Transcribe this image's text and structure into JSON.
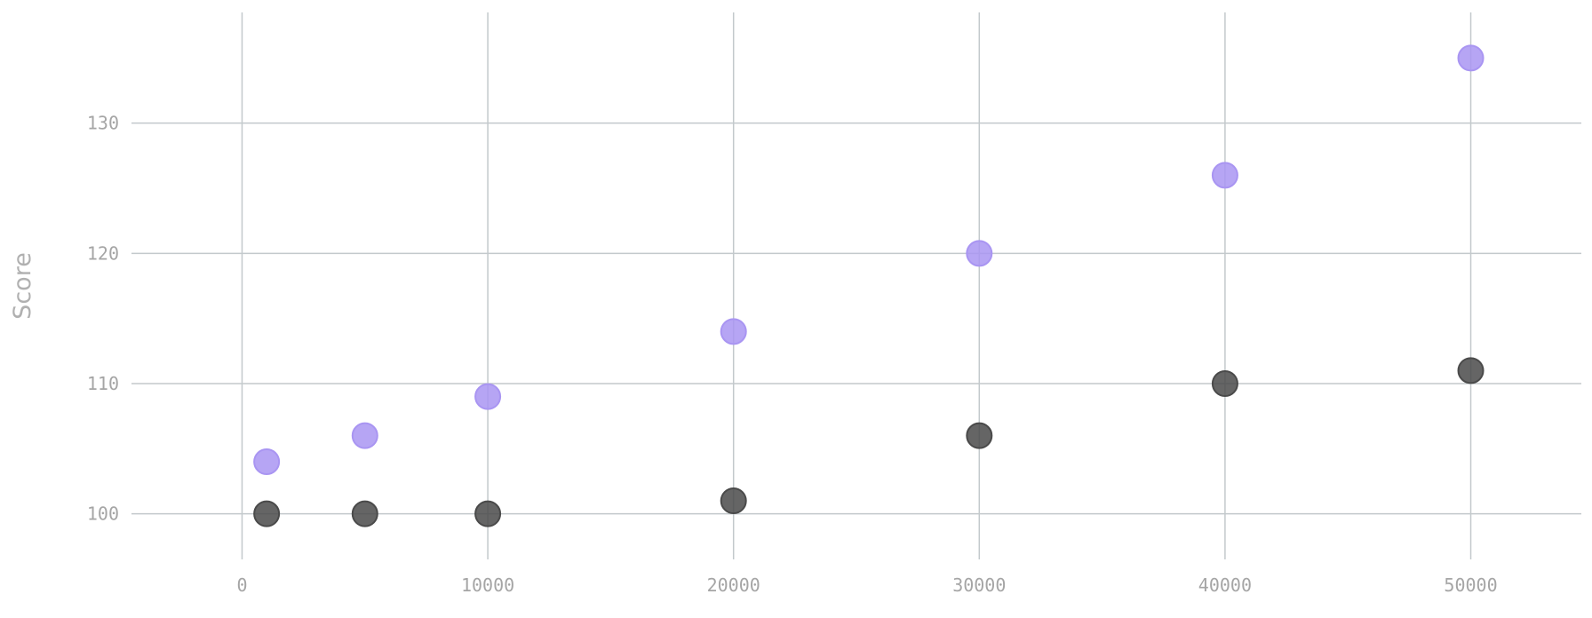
{
  "chart_data": {
    "type": "scatter",
    "title": "",
    "xlabel": "",
    "ylabel": "Score",
    "xlim": [
      -4500,
      54500
    ],
    "ylim": [
      96.5,
      138.5
    ],
    "x_ticks": [
      0,
      10000,
      20000,
      30000,
      40000,
      50000
    ],
    "y_ticks": [
      100,
      110,
      120,
      130
    ],
    "grid": true,
    "legend": "none",
    "x": [
      1000,
      5000,
      10000,
      20000,
      30000,
      40000,
      50000
    ],
    "series": [
      {
        "color": "#a995f2",
        "values": [
          104,
          106,
          109,
          114,
          120,
          126,
          135
        ]
      },
      {
        "color": "#4a4a4a",
        "values": [
          100,
          100,
          100,
          101,
          106,
          110,
          111
        ]
      }
    ]
  }
}
